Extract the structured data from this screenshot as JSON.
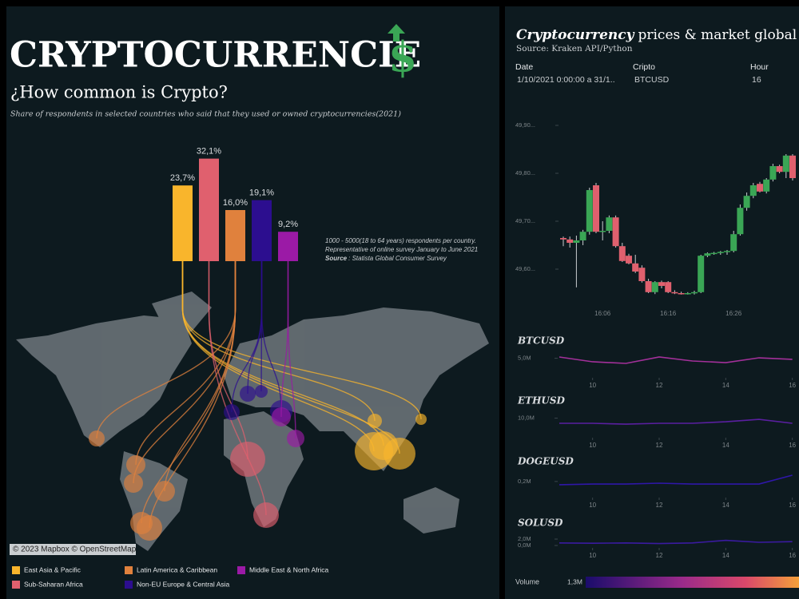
{
  "header": {
    "title": "CRYPTOCURRENCIE",
    "title_symbol": "$"
  },
  "map": {
    "attribution": "© 2023 Mapbox © OpenStreetMap"
  },
  "right_panel": {
    "title_emphasis": "Cryptocurrency",
    "title_rest": "prices & market global act",
    "source": "Source: Kraken API/Python"
  },
  "filters": [
    {
      "label": "Date",
      "value": "1/10/2021 0:00:00 a 31/1.."
    },
    {
      "label": "Cripto",
      "value": "BTCUSD"
    },
    {
      "label": "Hour",
      "value": "16"
    }
  ],
  "colorbar": {
    "label": "Volume",
    "ticks": [
      {
        "value": 1300000,
        "label": "1,3M"
      }
    ]
  },
  "chart_data": [
    {
      "type": "bar",
      "title": "¿How common is Crypto?",
      "subtitle": "Share of respondents in selected countries who said that they used or owned cryptocurrencies(2021)",
      "categories": [
        "East Asia & Pacific",
        "Sub-Saharan Africa",
        "Latin America & Caribbean",
        "Non-EU Europe & Central Asia",
        "Middle East & North Africa"
      ],
      "values": [
        23.7,
        32.1,
        16.0,
        19.1,
        9.2
      ],
      "value_labels": [
        "23,7%",
        "32,1%",
        "16,0%",
        "19,1%",
        "9,2%"
      ],
      "colors": [
        "#f9b52c",
        "#e0606e",
        "#e0813d",
        "#2c0e8f",
        "#9b1aa6"
      ],
      "note": [
        "1000 - 5000(18 to 64 years) respondents per country.",
        "Representative of online survey January to June 2021"
      ],
      "source_label": "Source",
      "source_text": ": Statista Global Consumer Survey"
    },
    {
      "type": "candlestick",
      "categories": [
        null,
        null,
        null,
        null,
        null,
        null,
        "16:06",
        null,
        null,
        null,
        null,
        null,
        null,
        null,
        null,
        null,
        "16:16",
        null,
        null,
        null,
        null,
        null,
        null,
        null,
        null,
        null,
        "16:26",
        null,
        null,
        null,
        null,
        null,
        null,
        null,
        null,
        null
      ],
      "open": [
        49665,
        49662,
        49655,
        49660,
        49678,
        49775,
        49678,
        49680,
        49708,
        49648,
        49628,
        49612,
        49603,
        49575,
        49552,
        49573,
        49573,
        49552,
        49550,
        49549,
        49550,
        49552,
        49628,
        49633,
        49634,
        49636,
        49638,
        49673,
        49728,
        49753,
        49778,
        49762,
        49787,
        49815,
        49803,
        49837
      ],
      "high": [
        49668,
        49668,
        49670,
        49682,
        49770,
        49780,
        49700,
        49712,
        49712,
        49655,
        49632,
        49630,
        49608,
        49580,
        49575,
        49576,
        49575,
        49556,
        49553,
        49552,
        49555,
        49630,
        49635,
        49636,
        49638,
        49640,
        49680,
        49735,
        49760,
        49780,
        49782,
        49790,
        49820,
        49818,
        49840,
        49840
      ],
      "low": [
        49648,
        49645,
        49562,
        49650,
        49672,
        49675,
        49660,
        49675,
        49645,
        49615,
        49610,
        49592,
        49572,
        49550,
        49548,
        49560,
        49550,
        49548,
        49547,
        49547,
        49547,
        49550,
        49625,
        49630,
        49630,
        49630,
        49635,
        49670,
        49722,
        49748,
        49760,
        49758,
        49783,
        49800,
        49790,
        49785
      ],
      "close": [
        49662,
        49655,
        49660,
        49678,
        49765,
        49678,
        49680,
        49708,
        49648,
        49617,
        49612,
        49595,
        49575,
        49552,
        49573,
        49565,
        49552,
        49550,
        49549,
        49550,
        49552,
        49628,
        49633,
        49634,
        49636,
        49638,
        49673,
        49728,
        49753,
        49775,
        49762,
        49787,
        49815,
        49803,
        49837,
        49790
      ],
      "up_color": "#3aa655",
      "down_color": "#e0606e",
      "ylim": [
        49530,
        49920
      ],
      "yticks": [
        {
          "value": 49900,
          "label": "49,90..."
        },
        {
          "value": 49800,
          "label": "49,80..."
        },
        {
          "value": 49700,
          "label": "49,70..."
        },
        {
          "value": 49600,
          "label": "49,60..."
        }
      ]
    },
    {
      "type": "line",
      "title": "BTCUSD",
      "x": [
        9,
        10,
        11,
        12,
        13,
        14,
        15,
        16
      ],
      "values": [
        5370000,
        3970000,
        3500000,
        5370000,
        4200000,
        3730000,
        5130000,
        4670000
      ],
      "color": "#a3309a",
      "xlim": [
        9,
        16.2
      ],
      "xticks": [
        10,
        12,
        14,
        16
      ],
      "ylim": [
        0,
        7000000
      ],
      "yticks": [
        {
          "value": 5000000,
          "label": "5,0M"
        }
      ]
    },
    {
      "type": "line",
      "title": "ETHUSD",
      "x": [
        9,
        10,
        11,
        12,
        13,
        14,
        15,
        16
      ],
      "values": [
        7000000,
        7000000,
        6500000,
        7000000,
        7000000,
        7900000,
        9300000,
        7000000
      ],
      "color": "#5a1fa0",
      "xlim": [
        9,
        16.2
      ],
      "xticks": [
        10,
        12,
        14,
        16
      ],
      "ylim": [
        0,
        14000000
      ],
      "yticks": [
        {
          "value": 10000000,
          "label": "10,0M"
        }
      ]
    },
    {
      "type": "line",
      "title": "DOGEUSD",
      "x": [
        9,
        10,
        11,
        12,
        13,
        14,
        15,
        16
      ],
      "values": [
        152000,
        163000,
        163000,
        175000,
        163000,
        163000,
        163000,
        292000
      ],
      "color": "#2f17a8",
      "xlim": [
        9,
        16.2
      ],
      "xticks": [
        10,
        12,
        14,
        16
      ],
      "ylim": [
        0,
        350000
      ],
      "yticks": [
        {
          "value": 200000,
          "label": "0,2M"
        }
      ]
    },
    {
      "type": "line",
      "title": "SOLUSD",
      "x": [
        9,
        10,
        11,
        12,
        13,
        14,
        15,
        16
      ],
      "values": [
        800000,
        700000,
        800000,
        600000,
        800000,
        1600000,
        1000000,
        1200000
      ],
      "color": "#3a1aa0",
      "xlim": [
        9,
        16.2
      ],
      "xticks": [
        10,
        12,
        14,
        16
      ],
      "ylim": [
        0,
        2000000
      ],
      "yticks": [
        {
          "value": 0,
          "label": "0,0M"
        },
        {
          "value": 2000000,
          "label": "2,0M"
        }
      ]
    }
  ]
}
